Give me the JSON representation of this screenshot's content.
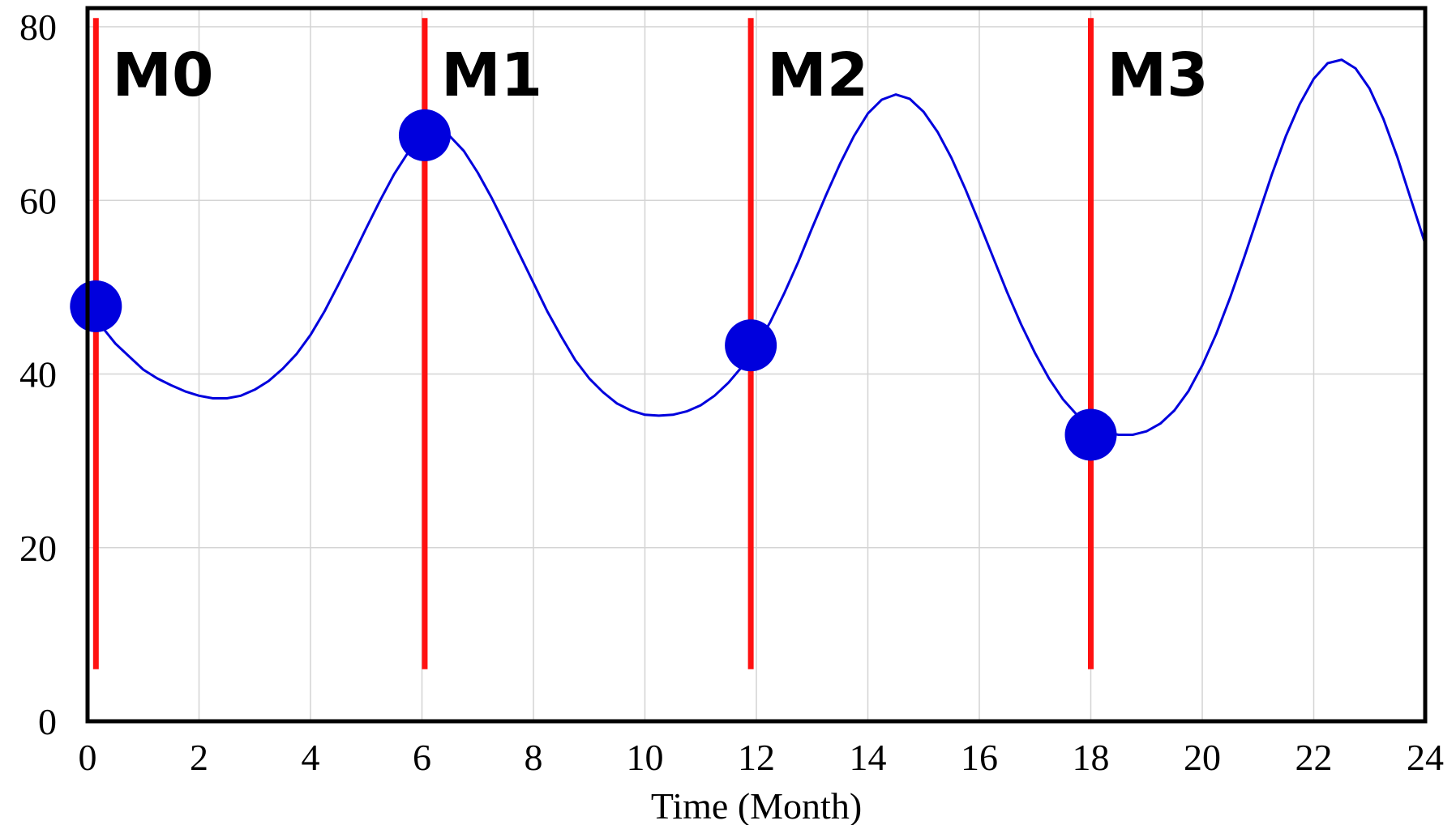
{
  "chart_data": {
    "type": "line",
    "title": "",
    "xlabel": "Time (Month)",
    "ylabel": "",
    "xlim": [
      0,
      24
    ],
    "ylim": [
      0,
      80
    ],
    "xticks": [
      0,
      2,
      4,
      6,
      8,
      10,
      12,
      14,
      16,
      18,
      20,
      22,
      24
    ],
    "yticks": [
      0,
      20,
      40,
      60,
      80
    ],
    "grid": true,
    "colors": {
      "line": "#0000dd",
      "points": "#0000dd",
      "milestones": "#ff1111",
      "grid": "#d4d4d4",
      "frame": "#000000"
    },
    "series": [
      {
        "x": [
          0.0,
          0.25,
          0.5,
          0.75,
          1.0,
          1.25,
          1.5,
          1.75,
          2.0,
          2.25,
          2.5,
          2.75,
          3.0,
          3.25,
          3.5,
          3.75,
          4.0,
          4.25,
          4.5,
          4.75,
          5.0,
          5.25,
          5.5,
          5.75,
          6.0,
          6.25,
          6.5,
          6.75,
          7.0,
          7.25,
          7.5,
          7.75,
          8.0,
          8.25,
          8.5,
          8.75,
          9.0,
          9.25,
          9.5,
          9.75,
          10.0,
          10.25,
          10.5,
          10.75,
          11.0,
          11.25,
          11.5,
          11.75,
          12.0,
          12.25,
          12.5,
          12.75,
          13.0,
          13.25,
          13.5,
          13.75,
          14.0,
          14.25,
          14.5,
          14.75,
          15.0,
          15.25,
          15.5,
          15.75,
          16.0,
          16.25,
          16.5,
          16.75,
          17.0,
          17.25,
          17.5,
          17.75,
          18.0,
          18.25,
          18.5,
          18.75,
          19.0,
          19.25,
          19.5,
          19.75,
          20.0,
          20.25,
          20.5,
          20.75,
          21.0,
          21.25,
          21.5,
          21.75,
          22.0,
          22.25,
          22.5,
          22.75,
          23.0,
          23.25,
          23.5,
          23.75,
          24.0
        ],
        "y": [
          48.0,
          45.5,
          43.5,
          42.0,
          40.5,
          39.5,
          38.7,
          38.0,
          37.5,
          37.2,
          37.2,
          37.5,
          38.2,
          39.2,
          40.6,
          42.3,
          44.5,
          47.2,
          50.3,
          53.5,
          56.8,
          60.0,
          63.0,
          65.5,
          67.3,
          68.0,
          67.4,
          65.7,
          63.2,
          60.3,
          57.1,
          53.8,
          50.5,
          47.2,
          44.3,
          41.6,
          39.5,
          37.9,
          36.6,
          35.8,
          35.3,
          35.2,
          35.3,
          35.7,
          36.4,
          37.5,
          39.0,
          40.9,
          43.2,
          46.0,
          49.3,
          52.9,
          56.8,
          60.6,
          64.2,
          67.4,
          70.0,
          71.6,
          72.2,
          71.7,
          70.2,
          67.9,
          64.9,
          61.3,
          57.4,
          53.4,
          49.4,
          45.7,
          42.4,
          39.5,
          37.1,
          35.3,
          34.0,
          33.3,
          33.0,
          33.0,
          33.4,
          34.3,
          35.8,
          38.0,
          41.0,
          44.6,
          48.8,
          53.4,
          58.2,
          63.0,
          67.4,
          71.1,
          74.0,
          75.8,
          76.2,
          75.2,
          72.9,
          69.4,
          65.0,
          60.0,
          55.0
        ]
      }
    ],
    "milestones": [
      {
        "label": "M0",
        "x": 0.15,
        "y": 47.8
      },
      {
        "label": "M1",
        "x": 6.05,
        "y": 67.5
      },
      {
        "label": "M2",
        "x": 11.9,
        "y": 43.3
      },
      {
        "label": "M3",
        "x": 18.0,
        "y": 33.0
      }
    ],
    "milestone_line_range": [
      6,
      81
    ]
  }
}
